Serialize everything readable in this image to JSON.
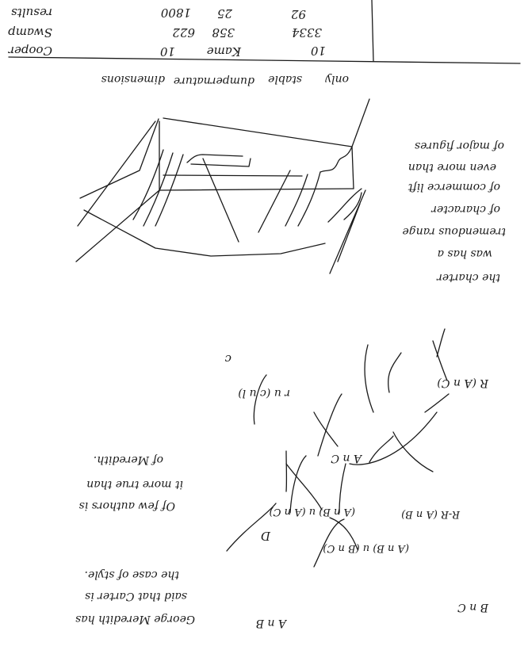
{
  "table": {
    "header": {
      "c1": "dimensions",
      "c2": "dumpernature",
      "c3": "stable",
      "c4": "only"
    },
    "rows": [
      {
        "label": "Cooper",
        "a": "10",
        "b": "Kame",
        "c": "10"
      },
      {
        "label": "Swamp",
        "a": "622",
        "b": "358",
        "c": "3334"
      },
      {
        "label": "results",
        "a": "1800",
        "b": "25",
        "c": "92"
      }
    ]
  },
  "note_top": {
    "lines": [
      "the charter",
      "was has a",
      "tremendous range",
      "of character",
      "of commerce lift",
      "even more than",
      "of major figures"
    ]
  },
  "diagram": {
    "mark": "c",
    "node_top_left": "r u (c u l)",
    "node_top_right": "R (A n C)",
    "node_mid": "A n C",
    "node_center_left": "(A n B) u (A n C)",
    "node_center_right": "R-R (A n B)",
    "node_left": "D",
    "node_lower": "(A n B) u (B n C)",
    "node_bottom_left": "A n B",
    "node_bottom_right": "B n C"
  },
  "note_middle": {
    "lines": [
      "Of few authors is",
      "it more true than",
      "of Meredith."
    ]
  },
  "note_bottom": {
    "lines": [
      "George Meredith has",
      "said that Carter is",
      "the case of style."
    ]
  }
}
